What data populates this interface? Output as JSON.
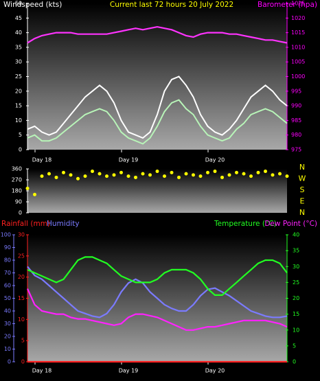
{
  "chart_data": [
    {
      "type": "line",
      "title": "Current last 72 hours 20 July 2022",
      "y_label": "Windspeed (kts)",
      "y2_label": "Barometer (hpa)",
      "ylim": [
        0,
        50
      ],
      "yticks": [
        0,
        5,
        10,
        15,
        20,
        25,
        30,
        35,
        40,
        45,
        50
      ],
      "y2lim": [
        975,
        1025
      ],
      "y2ticks": [
        975,
        980,
        985,
        990,
        995,
        1000,
        1005,
        1010,
        1015,
        1020,
        1025
      ],
      "y2_color": "#ff00ff",
      "categories": [
        null,
        null,
        "Day 18",
        null,
        null,
        null,
        null,
        null,
        null,
        null,
        null,
        null,
        null,
        null,
        "Day 19",
        null,
        null,
        null,
        null,
        null,
        null,
        null,
        null,
        null,
        null,
        null,
        "Day 20",
        null,
        null,
        null,
        null,
        null,
        null,
        null,
        null,
        null,
        null
      ],
      "series": [
        {
          "color": "#ffffff",
          "values": [
            7,
            8,
            6,
            5,
            6,
            9,
            12,
            15,
            18,
            20,
            22,
            20,
            16,
            10,
            6,
            5,
            4,
            6,
            12,
            20,
            24,
            25,
            22,
            18,
            12,
            8,
            6,
            5,
            7,
            10,
            14,
            18,
            20,
            22,
            20,
            17,
            15
          ]
        },
        {
          "color": "#b8f5b8",
          "values": [
            4,
            5,
            3,
            3,
            4,
            6,
            8,
            10,
            12,
            13,
            14,
            13,
            10,
            6,
            4,
            3,
            2,
            4,
            8,
            13,
            16,
            17,
            14,
            12,
            8,
            5,
            4,
            3,
            4,
            7,
            9,
            12,
            13,
            14,
            13,
            11,
            9
          ]
        },
        {
          "color": "#ff33ff",
          "axis": "y2",
          "values": [
            1011.5,
            1013,
            1014,
            1014.5,
            1015,
            1015,
            1015,
            1014.5,
            1014.5,
            1014.5,
            1014.5,
            1014.5,
            1015,
            1015.5,
            1016,
            1016.5,
            1016,
            1016.5,
            1017,
            1016.5,
            1016,
            1015,
            1014,
            1013.5,
            1014.5,
            1015,
            1015,
            1015,
            1014.5,
            1014.5,
            1014,
            1013.5,
            1013,
            1012.5,
            1012.5,
            1012,
            1011.5
          ]
        }
      ]
    },
    {
      "type": "scatter",
      "ylim": [
        0,
        360
      ],
      "yticks": [
        0,
        90,
        180,
        270,
        360
      ],
      "compass": [
        "N",
        "W",
        "S",
        "E",
        "N"
      ],
      "color": "#ffff00",
      "values": [
        200,
        150,
        300,
        320,
        290,
        330,
        310,
        280,
        300,
        340,
        320,
        300,
        310,
        330,
        300,
        290,
        320,
        310,
        340,
        300,
        330,
        290,
        320,
        310,
        300,
        330,
        340,
        290,
        310,
        330,
        320,
        300,
        330,
        340,
        310,
        320,
        300
      ]
    },
    {
      "type": "line",
      "ylim": [
        0,
        30
      ],
      "yticks": [
        0,
        5,
        10,
        15,
        20,
        25,
        30
      ],
      "y2lim": [
        0,
        40
      ],
      "y2ticks": [
        0,
        5,
        10,
        15,
        20,
        25,
        30,
        35,
        40
      ],
      "y3lim": [
        0,
        100
      ],
      "y3ticks": [
        0,
        10,
        20,
        30,
        40,
        50,
        60,
        70,
        80,
        90,
        100
      ],
      "categories": [
        null,
        null,
        "Day 18",
        null,
        null,
        null,
        null,
        null,
        null,
        null,
        null,
        null,
        null,
        null,
        "Day 19",
        null,
        null,
        null,
        null,
        null,
        null,
        null,
        null,
        null,
        null,
        null,
        "Day 20",
        null,
        null,
        null,
        null,
        null,
        null,
        null,
        null,
        null,
        null
      ],
      "series": [
        {
          "name": "Rainfall (mm)",
          "color": "#ff2020",
          "axis": "y",
          "values": [
            0,
            0,
            0,
            0,
            0,
            0,
            0,
            0,
            0,
            0,
            0,
            0,
            0,
            0,
            0,
            0,
            0,
            0,
            0,
            0,
            0,
            0,
            0,
            0,
            0,
            0,
            0,
            0,
            0,
            0,
            0,
            0,
            0,
            0,
            0,
            0,
            0
          ]
        },
        {
          "name": "Humidity",
          "color": "#7b7bff",
          "axis": "y3",
          "values": [
            75,
            68,
            65,
            60,
            55,
            50,
            45,
            40,
            38,
            36,
            35,
            38,
            45,
            55,
            62,
            65,
            62,
            55,
            50,
            45,
            42,
            40,
            40,
            45,
            52,
            57,
            58,
            55,
            52,
            48,
            44,
            40,
            38,
            36,
            35,
            35,
            36
          ]
        },
        {
          "name": "Temperature (°C)",
          "color": "#22ff22",
          "axis": "y2",
          "values": [
            29,
            28,
            27,
            26,
            25,
            26,
            29,
            32,
            33,
            33,
            32,
            31,
            29,
            27,
            26,
            25,
            25,
            25,
            26,
            28,
            29,
            29,
            29,
            28,
            26,
            23,
            21,
            21,
            23,
            25,
            27,
            29,
            31,
            32,
            32,
            31,
            28
          ]
        },
        {
          "name": "Dew Point (°C)",
          "color": "#ff22ff",
          "axis": "y2",
          "values": [
            23,
            18,
            16,
            15.5,
            15,
            15,
            14,
            13.5,
            13.5,
            13,
            12.5,
            12,
            11.5,
            12,
            14,
            15,
            15,
            14.5,
            14,
            13,
            12,
            11,
            10,
            10,
            10.5,
            11,
            11,
            11.5,
            12,
            12.5,
            13,
            13,
            13,
            13,
            12.5,
            12,
            11
          ]
        }
      ]
    }
  ]
}
